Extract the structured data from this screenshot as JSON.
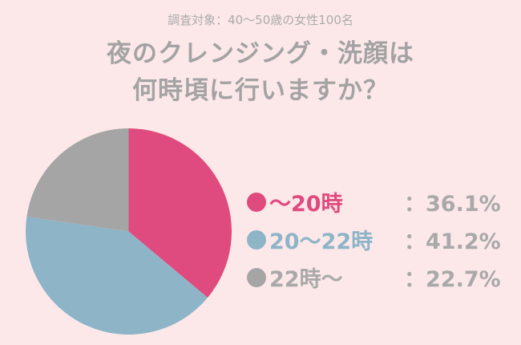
{
  "header": {
    "subtitle": "調査対象：40〜50歳の女性100名",
    "title_line1": "夜のクレンジング・洗顔は",
    "title_line2": "何時頃に行いますか？"
  },
  "legend": [
    {
      "label": "〜20時",
      "value": "：36.1%",
      "color": "#df4b7e"
    },
    {
      "label": "20〜22時",
      "value": "：41.2%",
      "color": "#8db5c7"
    },
    {
      "label": "22時〜",
      "value": "：22.7%",
      "color": "#a5a5a5"
    }
  ],
  "chart_data": {
    "type": "pie",
    "title": "夜のクレンジング・洗顔は何時頃に行いますか？",
    "subtitle": "調査対象：40〜50歳の女性100名",
    "categories": [
      "〜20時",
      "20〜22時",
      "22時〜"
    ],
    "values": [
      36.1,
      41.2,
      22.7
    ],
    "colors": [
      "#df4b7e",
      "#8db5c7",
      "#a5a5a5"
    ],
    "start_angle": "12 o'clock, clockwise",
    "legend_position": "right"
  }
}
